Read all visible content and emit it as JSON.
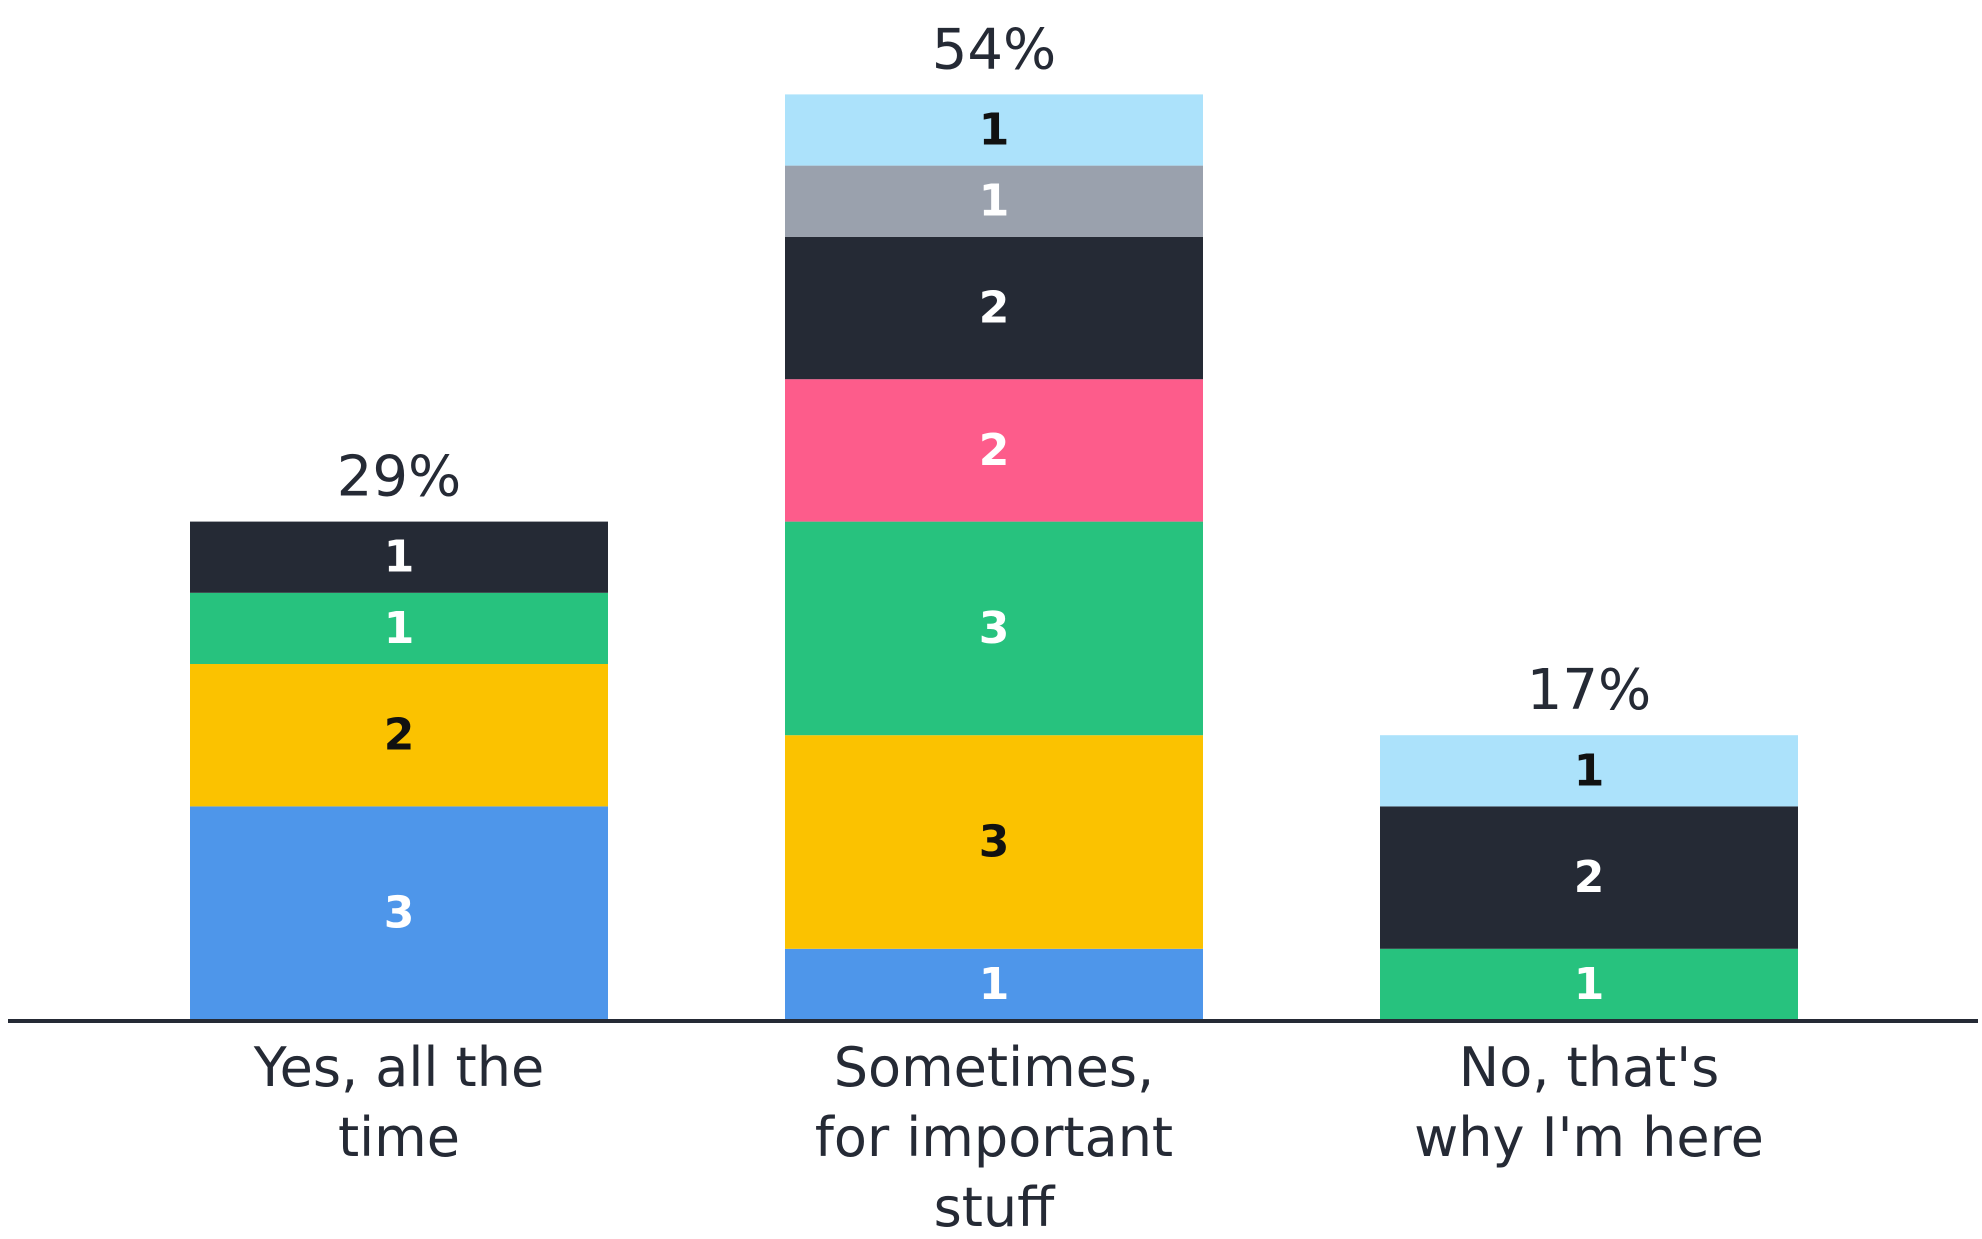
{
  "chart_data": {
    "type": "bar",
    "stacked": true,
    "categories": [
      [
        "Yes, all the",
        "time"
      ],
      [
        "Sometimes,",
        "for important",
        "stuff"
      ],
      [
        "No, that's",
        "why I'm here"
      ]
    ],
    "totals": [
      "29%",
      "54%",
      "17%"
    ],
    "segments": [
      [
        {
          "value": 3,
          "color": "#4e96ea",
          "label_color": "#ffffff"
        },
        {
          "value": 2,
          "color": "#fbc200",
          "label_color": "#111111"
        },
        {
          "value": 1,
          "color": "#27c27e",
          "label_color": "#ffffff"
        },
        {
          "value": 1,
          "color": "#252a35",
          "label_color": "#ffffff"
        }
      ],
      [
        {
          "value": 1,
          "color": "#4e96ea",
          "label_color": "#ffffff"
        },
        {
          "value": 3,
          "color": "#fbc200",
          "label_color": "#111111"
        },
        {
          "value": 3,
          "color": "#27c27e",
          "label_color": "#ffffff"
        },
        {
          "value": 2,
          "color": "#fd5c8b",
          "label_color": "#ffffff"
        },
        {
          "value": 2,
          "color": "#252a35",
          "label_color": "#ffffff"
        },
        {
          "value": 1,
          "color": "#9aa1ad",
          "label_color": "#ffffff"
        },
        {
          "value": 1,
          "color": "#ace2fb",
          "label_color": "#111111"
        }
      ],
      [
        {
          "value": 1,
          "color": "#27c27e",
          "label_color": "#ffffff"
        },
        {
          "value": 2,
          "color": "#252a35",
          "label_color": "#ffffff"
        },
        {
          "value": 1,
          "color": "#ace2fb",
          "label_color": "#111111"
        }
      ]
    ],
    "axis_color": "#252a35",
    "text_color": "#252a35",
    "grid": false,
    "legend": "none"
  }
}
